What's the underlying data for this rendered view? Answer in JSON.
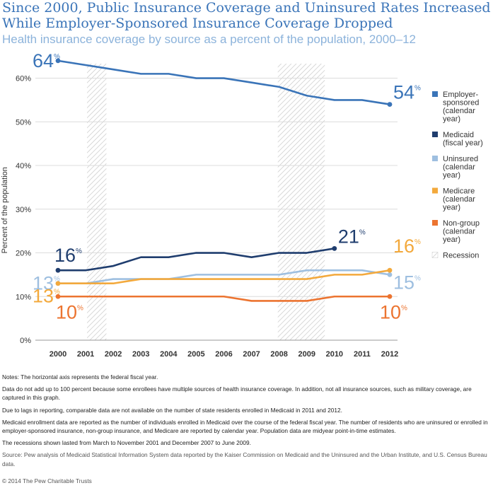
{
  "title": "Since 2000, Public Insurance Coverage and Uninsured Rates Increased While Employer-Sponsored Insurance Coverage Dropped",
  "subtitle": "Health insurance coverage by source as a percent of the population, 2000–12",
  "chart_data": {
    "type": "line",
    "ylabel": "Percent of the population",
    "xlabel": "",
    "x": [
      2000,
      2001,
      2002,
      2003,
      2004,
      2005,
      2006,
      2007,
      2008,
      2009,
      2010,
      2011,
      2012
    ],
    "x_tick_labels": [
      "2000",
      "2001",
      "2002",
      "2003",
      "2004",
      "2005",
      "2006",
      "2007",
      "2008",
      "2009",
      "2010",
      "2011",
      "2012"
    ],
    "y_ticks": [
      0,
      10,
      20,
      30,
      40,
      50,
      60
    ],
    "y_tick_labels": [
      "0%",
      "10%",
      "20%",
      "30%",
      "40%",
      "50%",
      "60%"
    ],
    "ylim": [
      0,
      66
    ],
    "grid": true,
    "legend_position": "right",
    "series": [
      {
        "name": "Employer-sponsored (calendar year)",
        "legend_lines": [
          "Employer-",
          "sponsored",
          "(calendar",
          "year)"
        ],
        "color": "#3a74b8",
        "x": [
          2000,
          2001,
          2002,
          2003,
          2004,
          2005,
          2006,
          2007,
          2008,
          2009,
          2010,
          2011,
          2012
        ],
        "values": [
          64,
          63,
          62,
          61,
          61,
          60,
          60,
          59,
          58,
          56,
          55,
          55,
          54
        ],
        "start_label": {
          "value": "64",
          "unit": "%",
          "side": "left"
        },
        "end_label": {
          "value": "54",
          "unit": "%",
          "side": "right"
        }
      },
      {
        "name": "Medicaid (fiscal year)",
        "legend_lines": [
          "Medicaid",
          "(fiscal year)"
        ],
        "color": "#1f3d6e",
        "x": [
          2000,
          2001,
          2002,
          2003,
          2004,
          2005,
          2006,
          2007,
          2008,
          2009,
          2010
        ],
        "values": [
          16,
          16,
          17,
          19,
          19,
          20,
          20,
          19,
          20,
          20,
          21
        ],
        "start_label": {
          "value": "16",
          "unit": "%",
          "side": "above"
        },
        "end_label": {
          "value": "21",
          "unit": "%",
          "side": "right"
        }
      },
      {
        "name": "Uninsured (calendar year)",
        "legend_lines": [
          "Uninsured",
          "(calendar",
          "year)"
        ],
        "color": "#9ebfe0",
        "x": [
          2000,
          2001,
          2002,
          2003,
          2004,
          2005,
          2006,
          2007,
          2008,
          2009,
          2010,
          2011,
          2012
        ],
        "values": [
          13,
          13,
          14,
          14,
          14,
          15,
          15,
          15,
          15,
          16,
          16,
          16,
          15
        ],
        "start_label": {
          "value": "13",
          "unit": "%",
          "side": "left"
        },
        "end_label": {
          "value": "15",
          "unit": "%",
          "side": "right-below"
        }
      },
      {
        "name": "Medicare (calendar year)",
        "legend_lines": [
          "Medicare",
          "(calendar",
          "year)"
        ],
        "color": "#f3a93c",
        "x": [
          2000,
          2001,
          2002,
          2003,
          2004,
          2005,
          2006,
          2007,
          2008,
          2009,
          2010,
          2011,
          2012
        ],
        "values": [
          13,
          13,
          13,
          14,
          14,
          14,
          14,
          14,
          14,
          14,
          15,
          15,
          16
        ],
        "start_label": {
          "value": "13",
          "unit": "%",
          "side": "left-below"
        },
        "end_label": {
          "value": "16",
          "unit": "%",
          "side": "right-above"
        }
      },
      {
        "name": "Non-group (calendar year)",
        "legend_lines": [
          "Non-group",
          "(calendar",
          "year)"
        ],
        "color": "#ec7430",
        "x": [
          2000,
          2001,
          2002,
          2003,
          2004,
          2005,
          2006,
          2007,
          2008,
          2009,
          2010,
          2011,
          2012
        ],
        "values": [
          10,
          10,
          10,
          10,
          10,
          10,
          10,
          9,
          9,
          9,
          10,
          10,
          10
        ],
        "start_label": {
          "value": "10",
          "unit": "%",
          "side": "below"
        },
        "end_label": {
          "value": "10",
          "unit": "%",
          "side": "below"
        }
      }
    ],
    "recession_legend_label": "Recession",
    "recessions": [
      [
        2001,
        2001.7
      ],
      [
        2007.9,
        2009.6
      ]
    ]
  },
  "notes": [
    "Notes: The horizontal axis represents the federal fiscal year.",
    "Data do not add up to 100 percent because some enrollees have multiple sources of health insurance coverage. In addition, not all insurance sources, such as military coverage, are captured in this graph.",
    "Due to lags in reporting, comparable data are not available on the number of state residents enrolled in Medicaid in 2011 and 2012.",
    "Medicaid enrollment data are reported as the number of individuals enrolled in Medicaid over the course of the federal fiscal year. The number of residents who are uninsured or enrolled in employer-sponsored insurance, non-group insurance, and Medicare are reported by calendar year. Population data are midyear point-in-time estimates.",
    "The recessions shown lasted from March to November 2001 and December 2007 to June 2009."
  ],
  "source": "Source: Pew analysis of Medicaid Statistical Information System data reported by the Kaiser Commission on Medicaid and the Uninsured and the Urban Institute, and U.S. Census Bureau data.",
  "copyright": "© 2014 The Pew Charitable Trusts"
}
